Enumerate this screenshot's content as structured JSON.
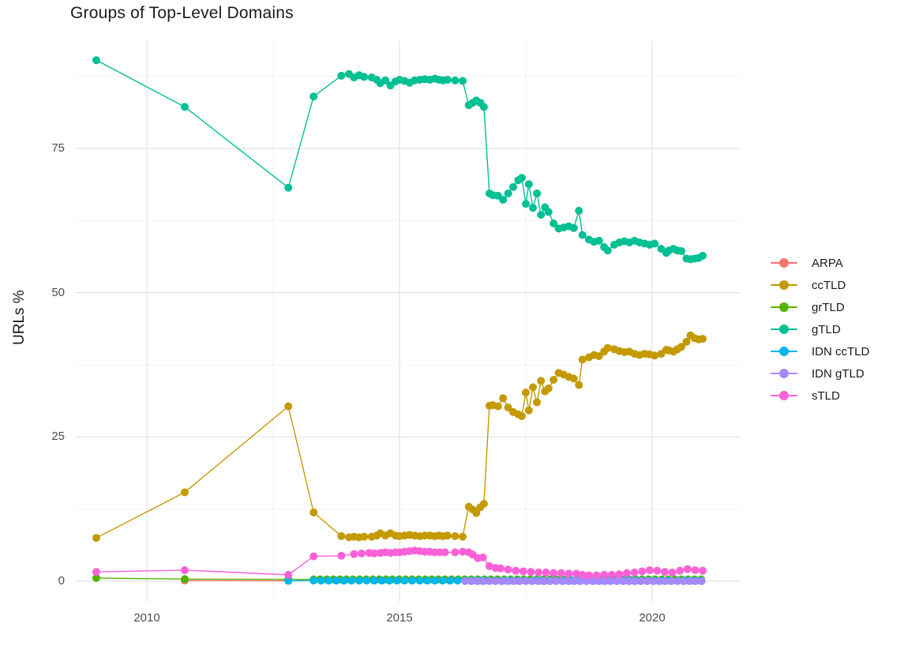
{
  "chart_data": {
    "type": "line",
    "title": "Groups of Top-Level Domains",
    "xlabel": "",
    "ylabel": "URLs %",
    "grid": true,
    "legend_position": "right",
    "xlim": [
      2008.55,
      2021.75
    ],
    "ylim": [
      -3.6,
      93.6
    ],
    "x_ticks": [
      {
        "value": 2010,
        "label": "2010"
      },
      {
        "value": 2015,
        "label": "2015"
      },
      {
        "value": 2020,
        "label": "2020"
      }
    ],
    "y_ticks": [
      {
        "value": 0,
        "label": "0"
      },
      {
        "value": 25,
        "label": "25"
      },
      {
        "value": 50,
        "label": "50"
      },
      {
        "value": 75,
        "label": "75"
      }
    ],
    "x_minor_gridlines": [
      2012.5,
      2017.5
    ],
    "y_minor_gridlines": [
      12.5,
      37.5,
      62.5,
      87.5
    ],
    "series": [
      {
        "name": "ARPA",
        "color": "#F8766D",
        "points": [
          [
            2010.75,
            0.1
          ],
          [
            2012.8,
            0.05
          ]
        ]
      },
      {
        "name": "ccTLD",
        "color": "#C49A00",
        "points": [
          [
            2009.0,
            7.5
          ],
          [
            2010.75,
            15.4
          ],
          [
            2012.8,
            30.3
          ],
          [
            2013.3,
            11.9
          ],
          [
            2013.85,
            7.8
          ],
          [
            2014.0,
            7.6
          ],
          [
            2014.1,
            7.7
          ],
          [
            2014.2,
            7.6
          ],
          [
            2014.3,
            7.7
          ],
          [
            2014.45,
            7.7
          ],
          [
            2014.55,
            7.9
          ],
          [
            2014.62,
            8.3
          ],
          [
            2014.72,
            7.9
          ],
          [
            2014.82,
            8.3
          ],
          [
            2014.92,
            7.9
          ],
          [
            2015.0,
            7.8
          ],
          [
            2015.1,
            7.9
          ],
          [
            2015.2,
            8.0
          ],
          [
            2015.3,
            7.9
          ],
          [
            2015.4,
            7.8
          ],
          [
            2015.5,
            7.9
          ],
          [
            2015.6,
            7.9
          ],
          [
            2015.7,
            7.8
          ],
          [
            2015.78,
            7.9
          ],
          [
            2015.86,
            7.8
          ],
          [
            2015.95,
            7.9
          ],
          [
            2016.1,
            7.8
          ],
          [
            2016.25,
            7.7
          ],
          [
            2016.37,
            12.9
          ],
          [
            2016.45,
            12.4
          ],
          [
            2016.52,
            11.8
          ],
          [
            2016.6,
            12.8
          ],
          [
            2016.67,
            13.4
          ],
          [
            2016.78,
            30.4
          ],
          [
            2016.85,
            30.5
          ],
          [
            2016.95,
            30.3
          ],
          [
            2017.05,
            31.7
          ],
          [
            2017.15,
            30.1
          ],
          [
            2017.25,
            29.3
          ],
          [
            2017.35,
            28.9
          ],
          [
            2017.42,
            28.6
          ],
          [
            2017.5,
            32.7
          ],
          [
            2017.56,
            29.6
          ],
          [
            2017.64,
            33.6
          ],
          [
            2017.72,
            31.0
          ],
          [
            2017.8,
            34.7
          ],
          [
            2017.88,
            32.9
          ],
          [
            2017.95,
            33.4
          ],
          [
            2018.05,
            34.9
          ],
          [
            2018.15,
            36.1
          ],
          [
            2018.25,
            35.8
          ],
          [
            2018.35,
            35.4
          ],
          [
            2018.45,
            35.1
          ],
          [
            2018.55,
            34.0
          ],
          [
            2018.62,
            38.4
          ],
          [
            2018.75,
            38.8
          ],
          [
            2018.85,
            39.2
          ],
          [
            2018.95,
            39.0
          ],
          [
            2019.05,
            39.8
          ],
          [
            2019.12,
            40.4
          ],
          [
            2019.25,
            40.2
          ],
          [
            2019.35,
            39.9
          ],
          [
            2019.45,
            39.7
          ],
          [
            2019.55,
            39.8
          ],
          [
            2019.65,
            39.4
          ],
          [
            2019.75,
            39.2
          ],
          [
            2019.85,
            39.4
          ],
          [
            2019.95,
            39.3
          ],
          [
            2020.05,
            39.1
          ],
          [
            2020.18,
            39.4
          ],
          [
            2020.28,
            40.1
          ],
          [
            2020.33,
            40.0
          ],
          [
            2020.42,
            39.8
          ],
          [
            2020.5,
            40.2
          ],
          [
            2020.58,
            40.6
          ],
          [
            2020.68,
            41.5
          ],
          [
            2020.76,
            42.6
          ],
          [
            2020.84,
            42.1
          ],
          [
            2020.92,
            41.9
          ],
          [
            2021.0,
            42.0
          ]
        ]
      },
      {
        "name": "grTLD",
        "color": "#53B400",
        "points": [
          [
            2009.0,
            0.55
          ],
          [
            2010.75,
            0.35
          ],
          [
            2012.8,
            0.3
          ]
        ],
        "runs": [
          {
            "from": 2013.3,
            "to": 2021.0,
            "step": 0.13,
            "y": 0.3
          }
        ]
      },
      {
        "name": "gTLD",
        "color": "#00C094",
        "points": [
          [
            2009.0,
            90.3
          ],
          [
            2010.75,
            82.2
          ],
          [
            2012.8,
            68.2
          ],
          [
            2013.3,
            84.0
          ],
          [
            2013.85,
            87.6
          ],
          [
            2014.0,
            87.9
          ],
          [
            2014.1,
            87.3
          ],
          [
            2014.2,
            87.7
          ],
          [
            2014.3,
            87.4
          ],
          [
            2014.45,
            87.3
          ],
          [
            2014.55,
            86.9
          ],
          [
            2014.62,
            86.3
          ],
          [
            2014.72,
            86.8
          ],
          [
            2014.82,
            85.9
          ],
          [
            2014.92,
            86.6
          ],
          [
            2015.0,
            86.9
          ],
          [
            2015.1,
            86.7
          ],
          [
            2015.2,
            86.4
          ],
          [
            2015.3,
            86.8
          ],
          [
            2015.4,
            86.9
          ],
          [
            2015.5,
            87.0
          ],
          [
            2015.6,
            86.9
          ],
          [
            2015.7,
            87.1
          ],
          [
            2015.78,
            86.9
          ],
          [
            2015.86,
            86.8
          ],
          [
            2015.95,
            86.9
          ],
          [
            2016.1,
            86.8
          ],
          [
            2016.25,
            86.7
          ],
          [
            2016.37,
            82.5
          ],
          [
            2016.45,
            82.9
          ],
          [
            2016.52,
            83.3
          ],
          [
            2016.6,
            82.9
          ],
          [
            2016.67,
            82.2
          ],
          [
            2016.78,
            67.2
          ],
          [
            2016.85,
            66.9
          ],
          [
            2016.95,
            66.8
          ],
          [
            2017.05,
            66.1
          ],
          [
            2017.15,
            67.2
          ],
          [
            2017.25,
            68.3
          ],
          [
            2017.35,
            69.5
          ],
          [
            2017.42,
            69.9
          ],
          [
            2017.5,
            65.4
          ],
          [
            2017.56,
            68.8
          ],
          [
            2017.64,
            64.7
          ],
          [
            2017.72,
            67.2
          ],
          [
            2017.8,
            63.5
          ],
          [
            2017.88,
            64.8
          ],
          [
            2017.95,
            64.0
          ],
          [
            2018.05,
            62.0
          ],
          [
            2018.15,
            61.1
          ],
          [
            2018.25,
            61.3
          ],
          [
            2018.35,
            61.5
          ],
          [
            2018.45,
            61.2
          ],
          [
            2018.55,
            64.2
          ],
          [
            2018.62,
            60.0
          ],
          [
            2018.75,
            59.2
          ],
          [
            2018.85,
            58.8
          ],
          [
            2018.95,
            59.0
          ],
          [
            2019.05,
            57.9
          ],
          [
            2019.12,
            57.3
          ],
          [
            2019.25,
            58.3
          ],
          [
            2019.35,
            58.7
          ],
          [
            2019.45,
            58.9
          ],
          [
            2019.55,
            58.7
          ],
          [
            2019.65,
            59.0
          ],
          [
            2019.75,
            58.7
          ],
          [
            2019.85,
            58.5
          ],
          [
            2019.95,
            58.3
          ],
          [
            2020.05,
            58.5
          ],
          [
            2020.18,
            57.6
          ],
          [
            2020.28,
            56.9
          ],
          [
            2020.33,
            57.3
          ],
          [
            2020.42,
            57.6
          ],
          [
            2020.5,
            57.3
          ],
          [
            2020.58,
            57.2
          ],
          [
            2020.68,
            55.9
          ],
          [
            2020.76,
            55.8
          ],
          [
            2020.84,
            55.9
          ],
          [
            2020.92,
            56.0
          ],
          [
            2021.0,
            56.4
          ]
        ]
      },
      {
        "name": "IDN ccTLD",
        "color": "#00B6EB",
        "points": [
          [
            2012.8,
            0.05
          ]
        ],
        "runs": [
          {
            "from": 2013.3,
            "to": 2021.0,
            "step": 0.15,
            "y": 0.1
          }
        ]
      },
      {
        "name": "IDN gTLD",
        "color": "#A58AFF",
        "runs": [
          {
            "from": 2016.3,
            "to": 2021.0,
            "step": 0.12,
            "y": 0.0
          }
        ]
      },
      {
        "name": "sTLD",
        "color": "#FB61D7",
        "points": [
          [
            2009.0,
            1.6
          ],
          [
            2010.75,
            1.9
          ],
          [
            2012.8,
            1.1
          ],
          [
            2013.3,
            4.3
          ],
          [
            2013.85,
            4.4
          ],
          [
            2014.1,
            4.7
          ],
          [
            2014.25,
            4.8
          ],
          [
            2014.4,
            4.9
          ],
          [
            2014.5,
            4.8
          ],
          [
            2014.62,
            4.9
          ],
          [
            2014.72,
            5.0
          ],
          [
            2014.82,
            4.9
          ],
          [
            2014.92,
            5.0
          ],
          [
            2015.0,
            5.0
          ],
          [
            2015.1,
            5.1
          ],
          [
            2015.2,
            5.2
          ],
          [
            2015.3,
            5.3
          ],
          [
            2015.4,
            5.2
          ],
          [
            2015.5,
            5.1
          ],
          [
            2015.6,
            5.1
          ],
          [
            2015.7,
            5.0
          ],
          [
            2015.8,
            5.0
          ],
          [
            2015.9,
            5.0
          ],
          [
            2016.1,
            5.0
          ],
          [
            2016.25,
            5.1
          ],
          [
            2016.37,
            5.0
          ],
          [
            2016.45,
            4.6
          ],
          [
            2016.55,
            4.0
          ],
          [
            2016.65,
            4.1
          ],
          [
            2016.78,
            2.6
          ],
          [
            2016.9,
            2.3
          ],
          [
            2017.0,
            2.2
          ],
          [
            2017.15,
            2.0
          ],
          [
            2017.3,
            1.8
          ],
          [
            2017.45,
            1.7
          ],
          [
            2017.6,
            1.6
          ],
          [
            2017.75,
            1.5
          ],
          [
            2017.9,
            1.5
          ],
          [
            2018.05,
            1.4
          ],
          [
            2018.2,
            1.4
          ],
          [
            2018.35,
            1.3
          ],
          [
            2018.5,
            1.3
          ],
          [
            2018.62,
            1.1
          ],
          [
            2018.75,
            1.0
          ],
          [
            2018.9,
            1.0
          ],
          [
            2019.05,
            1.1
          ],
          [
            2019.2,
            1.1
          ],
          [
            2019.35,
            1.2
          ],
          [
            2019.5,
            1.4
          ],
          [
            2019.65,
            1.5
          ],
          [
            2019.8,
            1.7
          ],
          [
            2019.95,
            1.9
          ],
          [
            2020.1,
            1.8
          ],
          [
            2020.25,
            1.6
          ],
          [
            2020.4,
            1.5
          ],
          [
            2020.55,
            1.8
          ],
          [
            2020.7,
            2.1
          ],
          [
            2020.85,
            1.9
          ],
          [
            2021.0,
            1.8
          ]
        ]
      }
    ],
    "style": {
      "major_gridline_color": "#e3e3e3",
      "minor_gridline_color": "#f0f0f0",
      "background_color": "#ffffff"
    }
  }
}
